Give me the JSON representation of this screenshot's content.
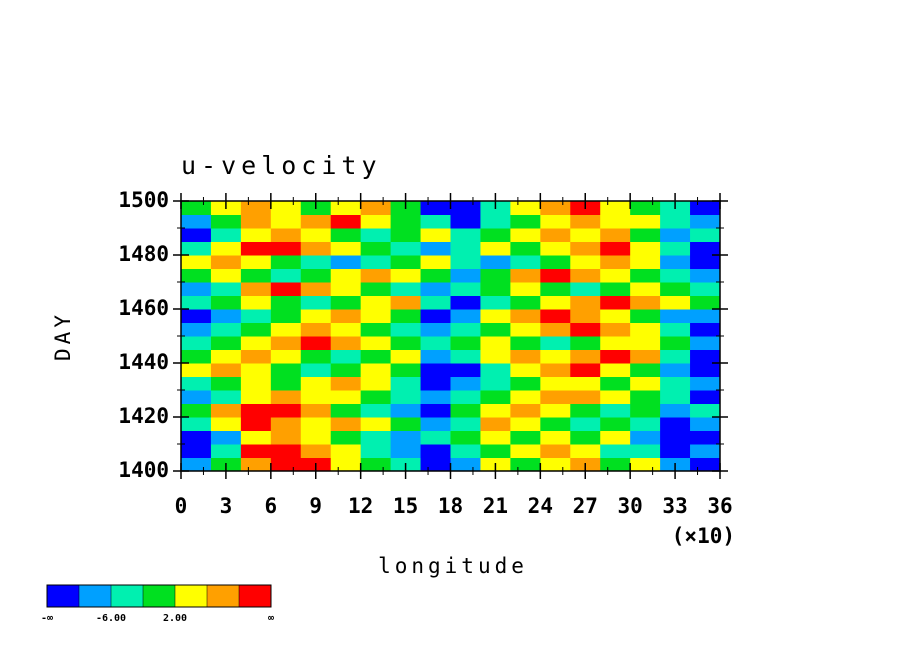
{
  "chart_data": {
    "type": "heatmap",
    "title": "u-velocity",
    "x_label": "longitude",
    "y_label": "DAY",
    "x_multiplier": "(×10)",
    "xlim": [
      0,
      36
    ],
    "xticks": [
      0,
      3,
      6,
      9,
      12,
      15,
      18,
      21,
      24,
      27,
      30,
      33,
      36
    ],
    "ylim": [
      1400,
      1500
    ],
    "yticks": [
      1400,
      1420,
      1440,
      1460,
      1480,
      1500
    ],
    "x": [
      1,
      3,
      5,
      7,
      9,
      11,
      13,
      15,
      17,
      19,
      21,
      23,
      25,
      27,
      29,
      31,
      33,
      35
    ],
    "y": [
      1402.5,
      1407.5,
      1412.5,
      1417.5,
      1422.5,
      1427.5,
      1432.5,
      1437.5,
      1442.5,
      1447.5,
      1452.5,
      1457.5,
      1462.5,
      1467.5,
      1472.5,
      1477.5,
      1482.5,
      1487.5,
      1492.5,
      1497.5
    ],
    "z": [
      [
        -8,
        0,
        8,
        12,
        12,
        4,
        0,
        -4,
        -12,
        -8,
        4,
        0,
        4,
        8,
        0,
        4,
        -8,
        -12
      ],
      [
        -12,
        -4,
        12,
        12,
        8,
        4,
        -4,
        -8,
        -12,
        -4,
        0,
        4,
        8,
        4,
        -4,
        -4,
        -12,
        -8
      ],
      [
        -12,
        -8,
        4,
        8,
        4,
        0,
        -4,
        -8,
        -4,
        0,
        4,
        0,
        4,
        0,
        4,
        -8,
        -12,
        -12
      ],
      [
        -4,
        4,
        12,
        8,
        4,
        8,
        4,
        0,
        -8,
        -4,
        8,
        4,
        0,
        -4,
        0,
        -4,
        -12,
        -8
      ],
      [
        0,
        8,
        12,
        12,
        8,
        0,
        -4,
        -8,
        -12,
        0,
        4,
        8,
        4,
        0,
        -4,
        0,
        -8,
        -4
      ],
      [
        -8,
        -4,
        4,
        8,
        4,
        4,
        0,
        -4,
        -8,
        -4,
        0,
        4,
        8,
        8,
        4,
        0,
        -4,
        -12
      ],
      [
        -4,
        0,
        4,
        0,
        4,
        8,
        4,
        -4,
        -12,
        -8,
        -4,
        0,
        4,
        4,
        0,
        4,
        -4,
        -8
      ],
      [
        4,
        8,
        4,
        0,
        -4,
        0,
        4,
        0,
        -12,
        -12,
        -4,
        4,
        8,
        12,
        4,
        0,
        -8,
        -12
      ],
      [
        0,
        4,
        8,
        4,
        0,
        -4,
        0,
        4,
        -8,
        -4,
        4,
        8,
        4,
        8,
        12,
        8,
        -4,
        -12
      ],
      [
        -4,
        0,
        4,
        8,
        12,
        8,
        4,
        0,
        -4,
        0,
        4,
        0,
        -4,
        0,
        4,
        4,
        0,
        -8
      ],
      [
        -8,
        -4,
        0,
        4,
        8,
        4,
        0,
        -4,
        -8,
        -4,
        0,
        4,
        8,
        12,
        8,
        4,
        -4,
        -12
      ],
      [
        -12,
        -8,
        -4,
        0,
        4,
        8,
        4,
        0,
        -12,
        -8,
        4,
        8,
        12,
        8,
        4,
        0,
        -8,
        -8
      ],
      [
        -4,
        0,
        4,
        0,
        -4,
        0,
        4,
        8,
        -4,
        -12,
        -4,
        0,
        4,
        8,
        12,
        8,
        4,
        0
      ],
      [
        -8,
        -4,
        8,
        12,
        8,
        4,
        0,
        -4,
        -8,
        -4,
        0,
        4,
        0,
        -4,
        0,
        4,
        0,
        -4
      ],
      [
        0,
        4,
        0,
        -4,
        0,
        4,
        8,
        4,
        0,
        -8,
        0,
        8,
        12,
        8,
        4,
        0,
        -4,
        -8
      ],
      [
        4,
        8,
        4,
        0,
        -4,
        -8,
        -4,
        0,
        4,
        -4,
        -8,
        -4,
        0,
        4,
        8,
        4,
        -8,
        -12
      ],
      [
        -4,
        4,
        12,
        12,
        8,
        4,
        0,
        -4,
        -8,
        -4,
        4,
        0,
        4,
        8,
        12,
        4,
        -4,
        -12
      ],
      [
        -12,
        -4,
        4,
        8,
        4,
        0,
        -4,
        0,
        4,
        -4,
        0,
        4,
        8,
        4,
        8,
        0,
        -8,
        -4
      ],
      [
        -8,
        0,
        8,
        4,
        8,
        12,
        4,
        0,
        -4,
        -12,
        -4,
        0,
        4,
        8,
        4,
        4,
        -4,
        -8
      ],
      [
        0,
        4,
        8,
        4,
        0,
        4,
        8,
        0,
        -12,
        -12,
        -4,
        4,
        8,
        12,
        4,
        0,
        -4,
        -12
      ]
    ],
    "colorbar": {
      "levels": [
        -10,
        -6,
        -2,
        2,
        6,
        10
      ],
      "colors": [
        "#0000ff",
        "#00a0ff",
        "#00f0b0",
        "#00e020",
        "#ffff00",
        "#ffa000",
        "#ff0000"
      ],
      "ticks": [
        {
          "value": -6,
          "label": "-6.00"
        },
        {
          "value": 2,
          "label": "2.00"
        }
      ],
      "low_label": "-∞",
      "high_label": "∞"
    }
  }
}
